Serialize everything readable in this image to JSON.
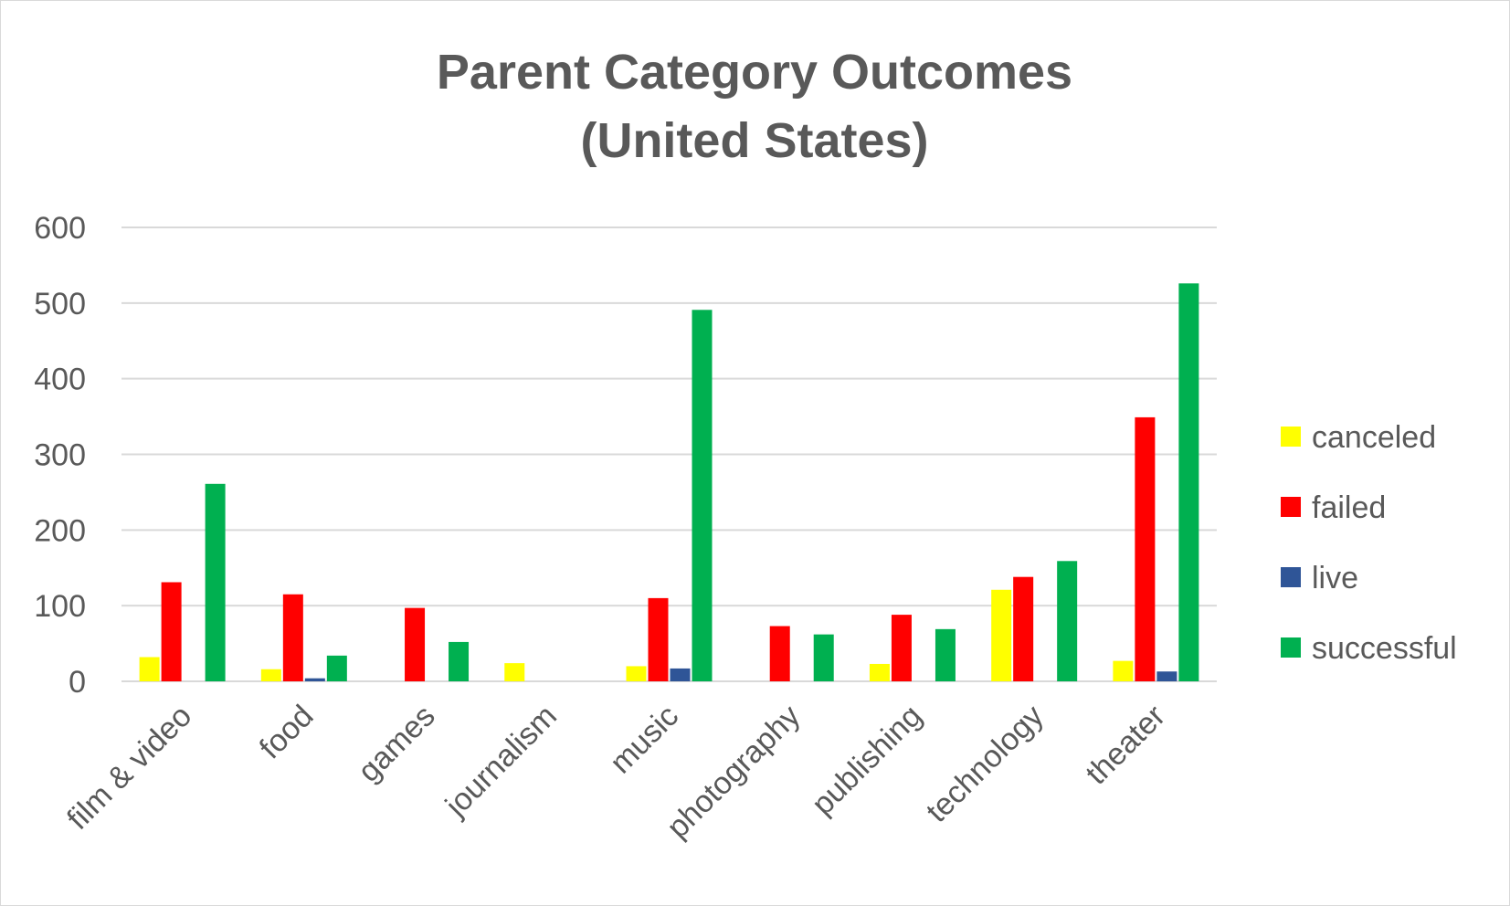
{
  "chart_data": {
    "type": "bar",
    "title": "Parent Category Outcomes",
    "subtitle": "(United States)",
    "xlabel": "",
    "ylabel": "",
    "ylim": [
      0,
      600
    ],
    "yticks": [
      "0",
      "100",
      "200",
      "300",
      "400",
      "500",
      "600"
    ],
    "grid": true,
    "legend_position": "right",
    "categories": [
      "film & video",
      "food",
      "games",
      "journalism",
      "music",
      "photography",
      "publishing",
      "technology",
      "theater"
    ],
    "series": [
      {
        "name": "canceled",
        "color": "#FFFF00",
        "values": [
          32,
          16,
          0,
          24,
          20,
          0,
          23,
          121,
          27
        ]
      },
      {
        "name": "failed",
        "color": "#FF0000",
        "values": [
          131,
          115,
          97,
          0,
          110,
          73,
          88,
          138,
          349
        ]
      },
      {
        "name": "live",
        "color": "#2F5597",
        "values": [
          0,
          4,
          0,
          0,
          17,
          0,
          0,
          0,
          13
        ]
      },
      {
        "name": "successful",
        "color": "#00B050",
        "values": [
          261,
          34,
          52,
          0,
          491,
          62,
          69,
          159,
          526
        ]
      }
    ]
  }
}
